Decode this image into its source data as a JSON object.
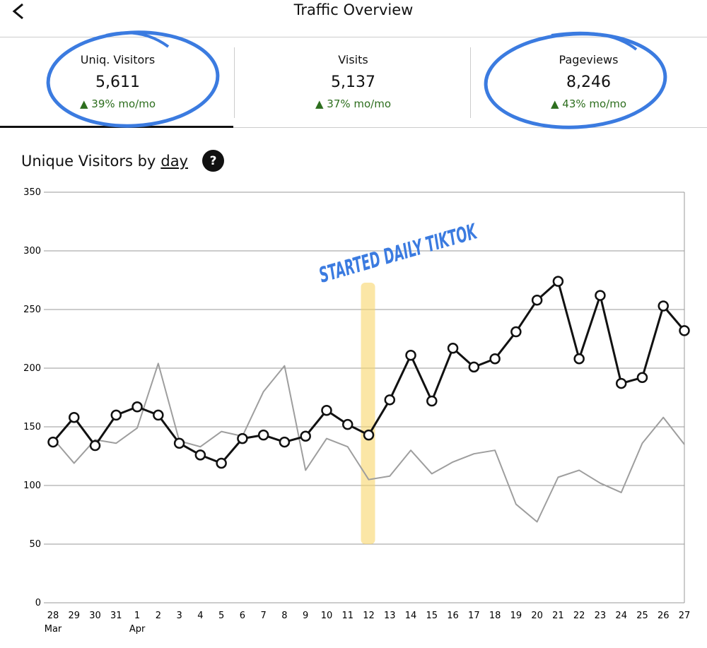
{
  "header": {
    "title": "Traffic Overview"
  },
  "stats": [
    {
      "label": "Uniq. Visitors",
      "value": "5,611",
      "change": "▲ 39% mo/mo"
    },
    {
      "label": "Visits",
      "value": "5,137",
      "change": "▲ 37% mo/mo"
    },
    {
      "label": "Pageviews",
      "value": "8,246",
      "change": "▲ 43% mo/mo"
    }
  ],
  "chart_data": {
    "type": "line",
    "title": "Unique Visitors by",
    "title_link": "day",
    "help": "?",
    "annotation": "STARTED DAILY TIKTOK",
    "categories": [
      "28",
      "29",
      "30",
      "31",
      "1",
      "2",
      "3",
      "4",
      "5",
      "6",
      "7",
      "8",
      "9",
      "10",
      "11",
      "12",
      "13",
      "14",
      "15",
      "16",
      "17",
      "18",
      "19",
      "20",
      "21",
      "22",
      "23",
      "24",
      "25",
      "26",
      "27"
    ],
    "category_sublabels": [
      "Mar",
      null,
      null,
      null,
      "Apr",
      null,
      null,
      null,
      null,
      null,
      null,
      null,
      null,
      null,
      null,
      null,
      null,
      null,
      null,
      null,
      null,
      null,
      null,
      null,
      null,
      null,
      null,
      null,
      null,
      null,
      null
    ],
    "series": [
      {
        "color": "#9e9e9e",
        "values": [
          140,
          119,
          139,
          136,
          149,
          204,
          138,
          133,
          146,
          142,
          180,
          202,
          113,
          140,
          133,
          105,
          108,
          130,
          110,
          120,
          127,
          130,
          84,
          69,
          107,
          113,
          102,
          94,
          136,
          158,
          135
        ]
      },
      {
        "color": "#111111",
        "markers": true,
        "values": [
          137,
          158,
          134,
          160,
          167,
          160,
          136,
          126,
          119,
          140,
          143,
          137,
          142,
          164,
          152,
          143,
          173,
          211,
          172,
          217,
          201,
          208,
          231,
          258,
          274,
          208,
          262,
          187,
          192,
          253,
          232
        ]
      }
    ],
    "ylim": [
      0,
      350
    ],
    "yticks": [
      0,
      50,
      100,
      150,
      200,
      250,
      300,
      350
    ],
    "grid": true
  }
}
